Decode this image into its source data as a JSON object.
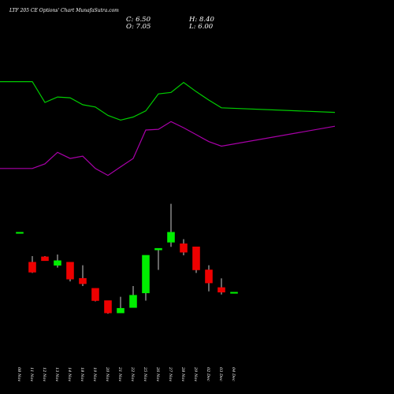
{
  "chart_data": {
    "type": "candlestick",
    "title": "LTF 205 CE Options' Chart MunafaSutra.com",
    "ohlc_readout": {
      "c": "C: 6.50",
      "o": "O: 7.05",
      "h": "H: 8.40",
      "l": "L: 6.00"
    },
    "colors": {
      "up": "#00ee00",
      "down": "#ee0000",
      "line_upper": "#00cc00",
      "line_lower": "#aa00aa",
      "background": "#000000"
    },
    "categories": [
      "08 Nov",
      "11 Nov",
      "12 Nov",
      "13 Nov",
      "14 Nov",
      "18 Nov",
      "19 Nov",
      "20 Nov",
      "21 Nov",
      "22 Nov",
      "25 Nov",
      "26 Nov",
      "27 Nov",
      "28 Nov",
      "29 Nov",
      "02 Dec",
      "03 Dec",
      "04 Dec"
    ],
    "candles": [
      {
        "o": 24.9,
        "h": 24.9,
        "l": 24.9,
        "c": 24.9
      },
      {
        "o": 21.0,
        "h": 21.8,
        "l": 19.6,
        "c": 19.7
      },
      {
        "o": 21.7,
        "h": 21.8,
        "l": 21.2,
        "c": 21.2
      },
      {
        "o": 20.6,
        "h": 22.0,
        "l": 20.3,
        "c": 21.2
      },
      {
        "o": 21.0,
        "h": 21.0,
        "l": 18.5,
        "c": 18.8
      },
      {
        "o": 18.9,
        "h": 20.6,
        "l": 17.9,
        "c": 18.2
      },
      {
        "o": 17.6,
        "h": 17.6,
        "l": 15.9,
        "c": 16.0
      },
      {
        "o": 16.0,
        "h": 16.0,
        "l": 14.3,
        "c": 14.4
      },
      {
        "o": 14.4,
        "h": 16.5,
        "l": 14.4,
        "c": 15.0
      },
      {
        "o": 15.1,
        "h": 17.9,
        "l": 15.1,
        "c": 16.7
      },
      {
        "o": 17.0,
        "h": 21.9,
        "l": 16.0,
        "c": 21.9
      },
      {
        "o": 22.6,
        "h": 22.6,
        "l": 20.0,
        "c": 22.8
      },
      {
        "o": 23.6,
        "h": 28.6,
        "l": 23.0,
        "c": 24.9
      },
      {
        "o": 23.4,
        "h": 24.0,
        "l": 21.9,
        "c": 22.3
      },
      {
        "o": 23.0,
        "h": 23.0,
        "l": 19.6,
        "c": 20.0
      },
      {
        "o": 20.0,
        "h": 20.6,
        "l": 17.2,
        "c": 18.3
      },
      {
        "o": 17.7,
        "h": 18.9,
        "l": 16.8,
        "c": 17.1
      },
      {
        "o": 17.1,
        "h": 17.1,
        "l": 17.1,
        "c": 17.1
      }
    ],
    "lines": [
      {
        "color_key": "line_upper",
        "values": [
          44.5,
          44.5,
          41.8,
          42.5,
          42.4,
          41.5,
          41.2,
          40.1,
          39.5,
          39.9,
          40.7,
          42.9,
          43.1,
          44.4,
          43.2,
          42.1,
          41.1,
          40.5
        ]
      },
      {
        "color_key": "line_lower",
        "values": [
          33.2,
          33.2,
          33.8,
          35.3,
          34.5,
          34.8,
          33.2,
          32.3,
          33.4,
          34.5,
          38.2,
          38.3,
          39.3,
          38.5,
          37.6,
          36.7,
          36.1,
          38.7
        ]
      }
    ],
    "ylim": [
      10,
      50
    ]
  }
}
